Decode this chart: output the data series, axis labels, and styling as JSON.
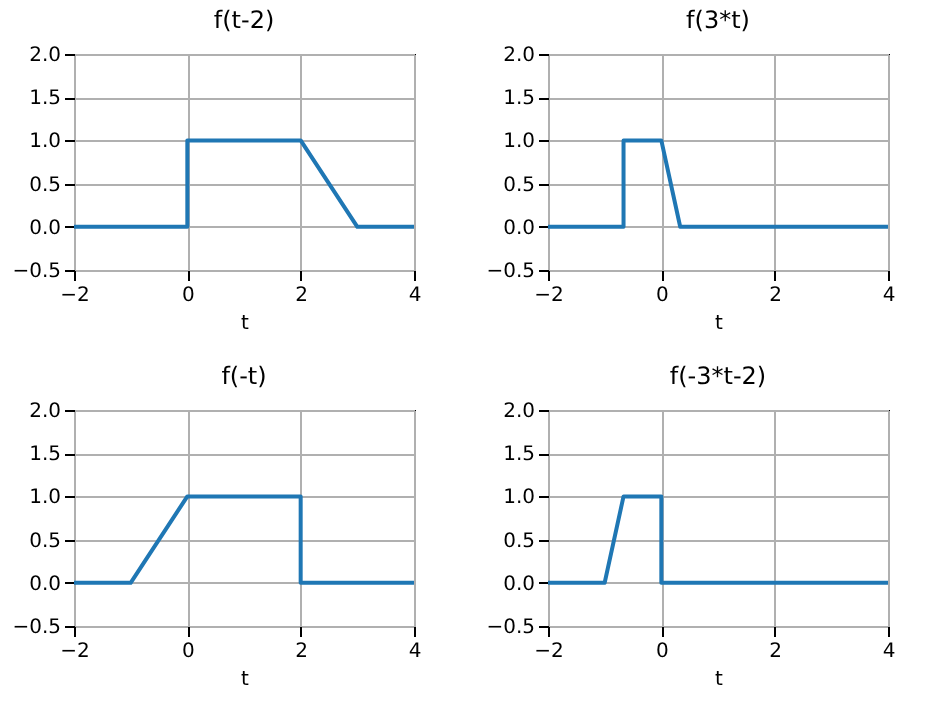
{
  "chart_data": [
    {
      "type": "line",
      "title": "f(t-2)",
      "xlabel": "t",
      "x": [
        -2,
        0,
        0,
        2,
        3,
        4
      ],
      "series": [
        {
          "color": "#1f77b4",
          "values": [
            0,
            0,
            1,
            1,
            0,
            0
          ]
        }
      ],
      "xlim": [
        -2,
        4
      ],
      "ylim": [
        -0.5,
        2
      ],
      "xticks": [
        -2,
        0,
        2,
        4
      ],
      "yticks": [
        {
          "value": -0.5,
          "label": "−0.5"
        },
        {
          "value": 0,
          "label": "0.0"
        },
        {
          "value": 0.5,
          "label": "0.5"
        },
        {
          "value": 1,
          "label": "1.0"
        },
        {
          "value": 1.5,
          "label": "1.5"
        },
        {
          "value": 2,
          "label": "2.0"
        }
      ],
      "grid": true
    },
    {
      "type": "line",
      "title": "f(3*t)",
      "xlabel": "t",
      "x": [
        -2,
        -0.667,
        -0.667,
        0,
        0.333,
        4
      ],
      "series": [
        {
          "color": "#1f77b4",
          "values": [
            0,
            0,
            1,
            1,
            0,
            0
          ]
        }
      ],
      "xlim": [
        -2,
        4
      ],
      "ylim": [
        -0.5,
        2
      ],
      "xticks": [
        -2,
        0,
        2,
        4
      ],
      "yticks": [
        {
          "value": -0.5,
          "label": "−0.5"
        },
        {
          "value": 0,
          "label": "0.0"
        },
        {
          "value": 0.5,
          "label": "0.5"
        },
        {
          "value": 1,
          "label": "1.0"
        },
        {
          "value": 1.5,
          "label": "1.5"
        },
        {
          "value": 2,
          "label": "2.0"
        }
      ],
      "grid": true
    },
    {
      "type": "line",
      "title": "f(-t)",
      "xlabel": "t",
      "x": [
        -2,
        -1,
        0,
        2,
        2,
        4
      ],
      "series": [
        {
          "color": "#1f77b4",
          "values": [
            0,
            0,
            1,
            1,
            0,
            0
          ]
        }
      ],
      "xlim": [
        -2,
        4
      ],
      "ylim": [
        -0.5,
        2
      ],
      "xticks": [
        -2,
        0,
        2,
        4
      ],
      "yticks": [
        {
          "value": -0.5,
          "label": "−0.5"
        },
        {
          "value": 0,
          "label": "0.0"
        },
        {
          "value": 0.5,
          "label": "0.5"
        },
        {
          "value": 1,
          "label": "1.0"
        },
        {
          "value": 1.5,
          "label": "1.5"
        },
        {
          "value": 2,
          "label": "2.0"
        }
      ],
      "grid": true
    },
    {
      "type": "line",
      "title": "f(-3*t-2)",
      "xlabel": "t",
      "x": [
        -2,
        -1,
        -0.667,
        0,
        0,
        4
      ],
      "series": [
        {
          "color": "#1f77b4",
          "values": [
            0,
            0,
            1,
            1,
            0,
            0
          ]
        }
      ],
      "xlim": [
        -2,
        4
      ],
      "ylim": [
        -0.5,
        2
      ],
      "xticks": [
        -2,
        0,
        2,
        4
      ],
      "yticks": [
        {
          "value": -0.5,
          "label": "−0.5"
        },
        {
          "value": 0,
          "label": "0.0"
        },
        {
          "value": 0.5,
          "label": "0.5"
        },
        {
          "value": 1,
          "label": "1.0"
        },
        {
          "value": 1.5,
          "label": "1.5"
        },
        {
          "value": 2,
          "label": "2.0"
        }
      ],
      "grid": true
    }
  ]
}
